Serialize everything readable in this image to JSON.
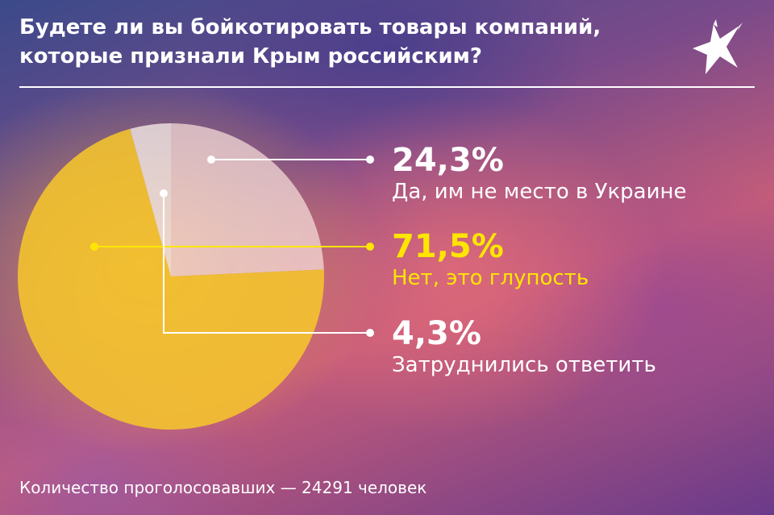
{
  "title": "Будете ли вы бойкотировать товары компаний, которые признали Крым российским?",
  "footer": "Количество проголосовавших — 24291 человек",
  "colors": {
    "yes": "#f6dedb",
    "no": "#f5c52c",
    "unsure": "#f5ece8",
    "highlight": "#ffe600"
  },
  "chart_data": {
    "type": "pie",
    "slices": [
      {
        "label": "Да, им не место в Украине",
        "value": 24.3,
        "value_text": "24,3%"
      },
      {
        "label": "Нет, это глупость",
        "value": 71.5,
        "value_text": "71,5%"
      },
      {
        "label": "Затруднились ответить",
        "value": 4.3,
        "value_text": "4,3%"
      }
    ],
    "legend_position": "right"
  }
}
